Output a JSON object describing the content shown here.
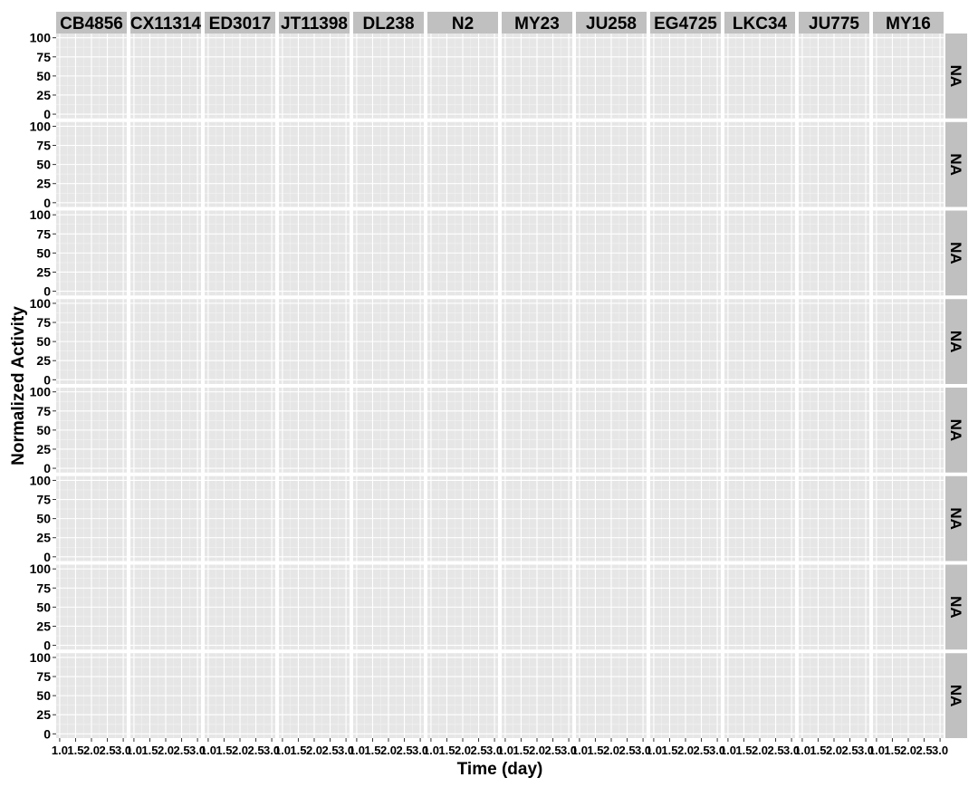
{
  "chart_data": {
    "type": "line",
    "xlabel": "Time (day)",
    "ylabel": "Normalized Activity",
    "xlim": [
      1.0,
      3.0
    ],
    "ylim": [
      0,
      100
    ],
    "x_ticks": [
      1.0,
      1.5,
      2.0,
      2.5,
      3.0
    ],
    "x_tick_labels": [
      "1.0",
      "1.5",
      "2.0",
      "2.5",
      "3.0"
    ],
    "y_ticks": [
      0,
      25,
      50,
      75,
      100
    ],
    "y_tick_labels": [
      "0",
      "25",
      "50",
      "75",
      "100"
    ],
    "grid": true,
    "column_facets": [
      "CB4856",
      "CX11314",
      "ED3017",
      "JT11398",
      "DL238",
      "N2",
      "MY23",
      "JU258",
      "EG4725",
      "LKC34",
      "JU775",
      "MY16"
    ],
    "row_facets": [
      "NA",
      "NA",
      "NA",
      "NA",
      "NA",
      "NA",
      "NA",
      "NA"
    ],
    "series": []
  },
  "colors": {
    "panel_background": "#e6e6e6",
    "grid_major": "#ffffff",
    "grid_minor": "#f2f2f2",
    "strip_background": "#c0c0c0",
    "text": "#000000"
  }
}
